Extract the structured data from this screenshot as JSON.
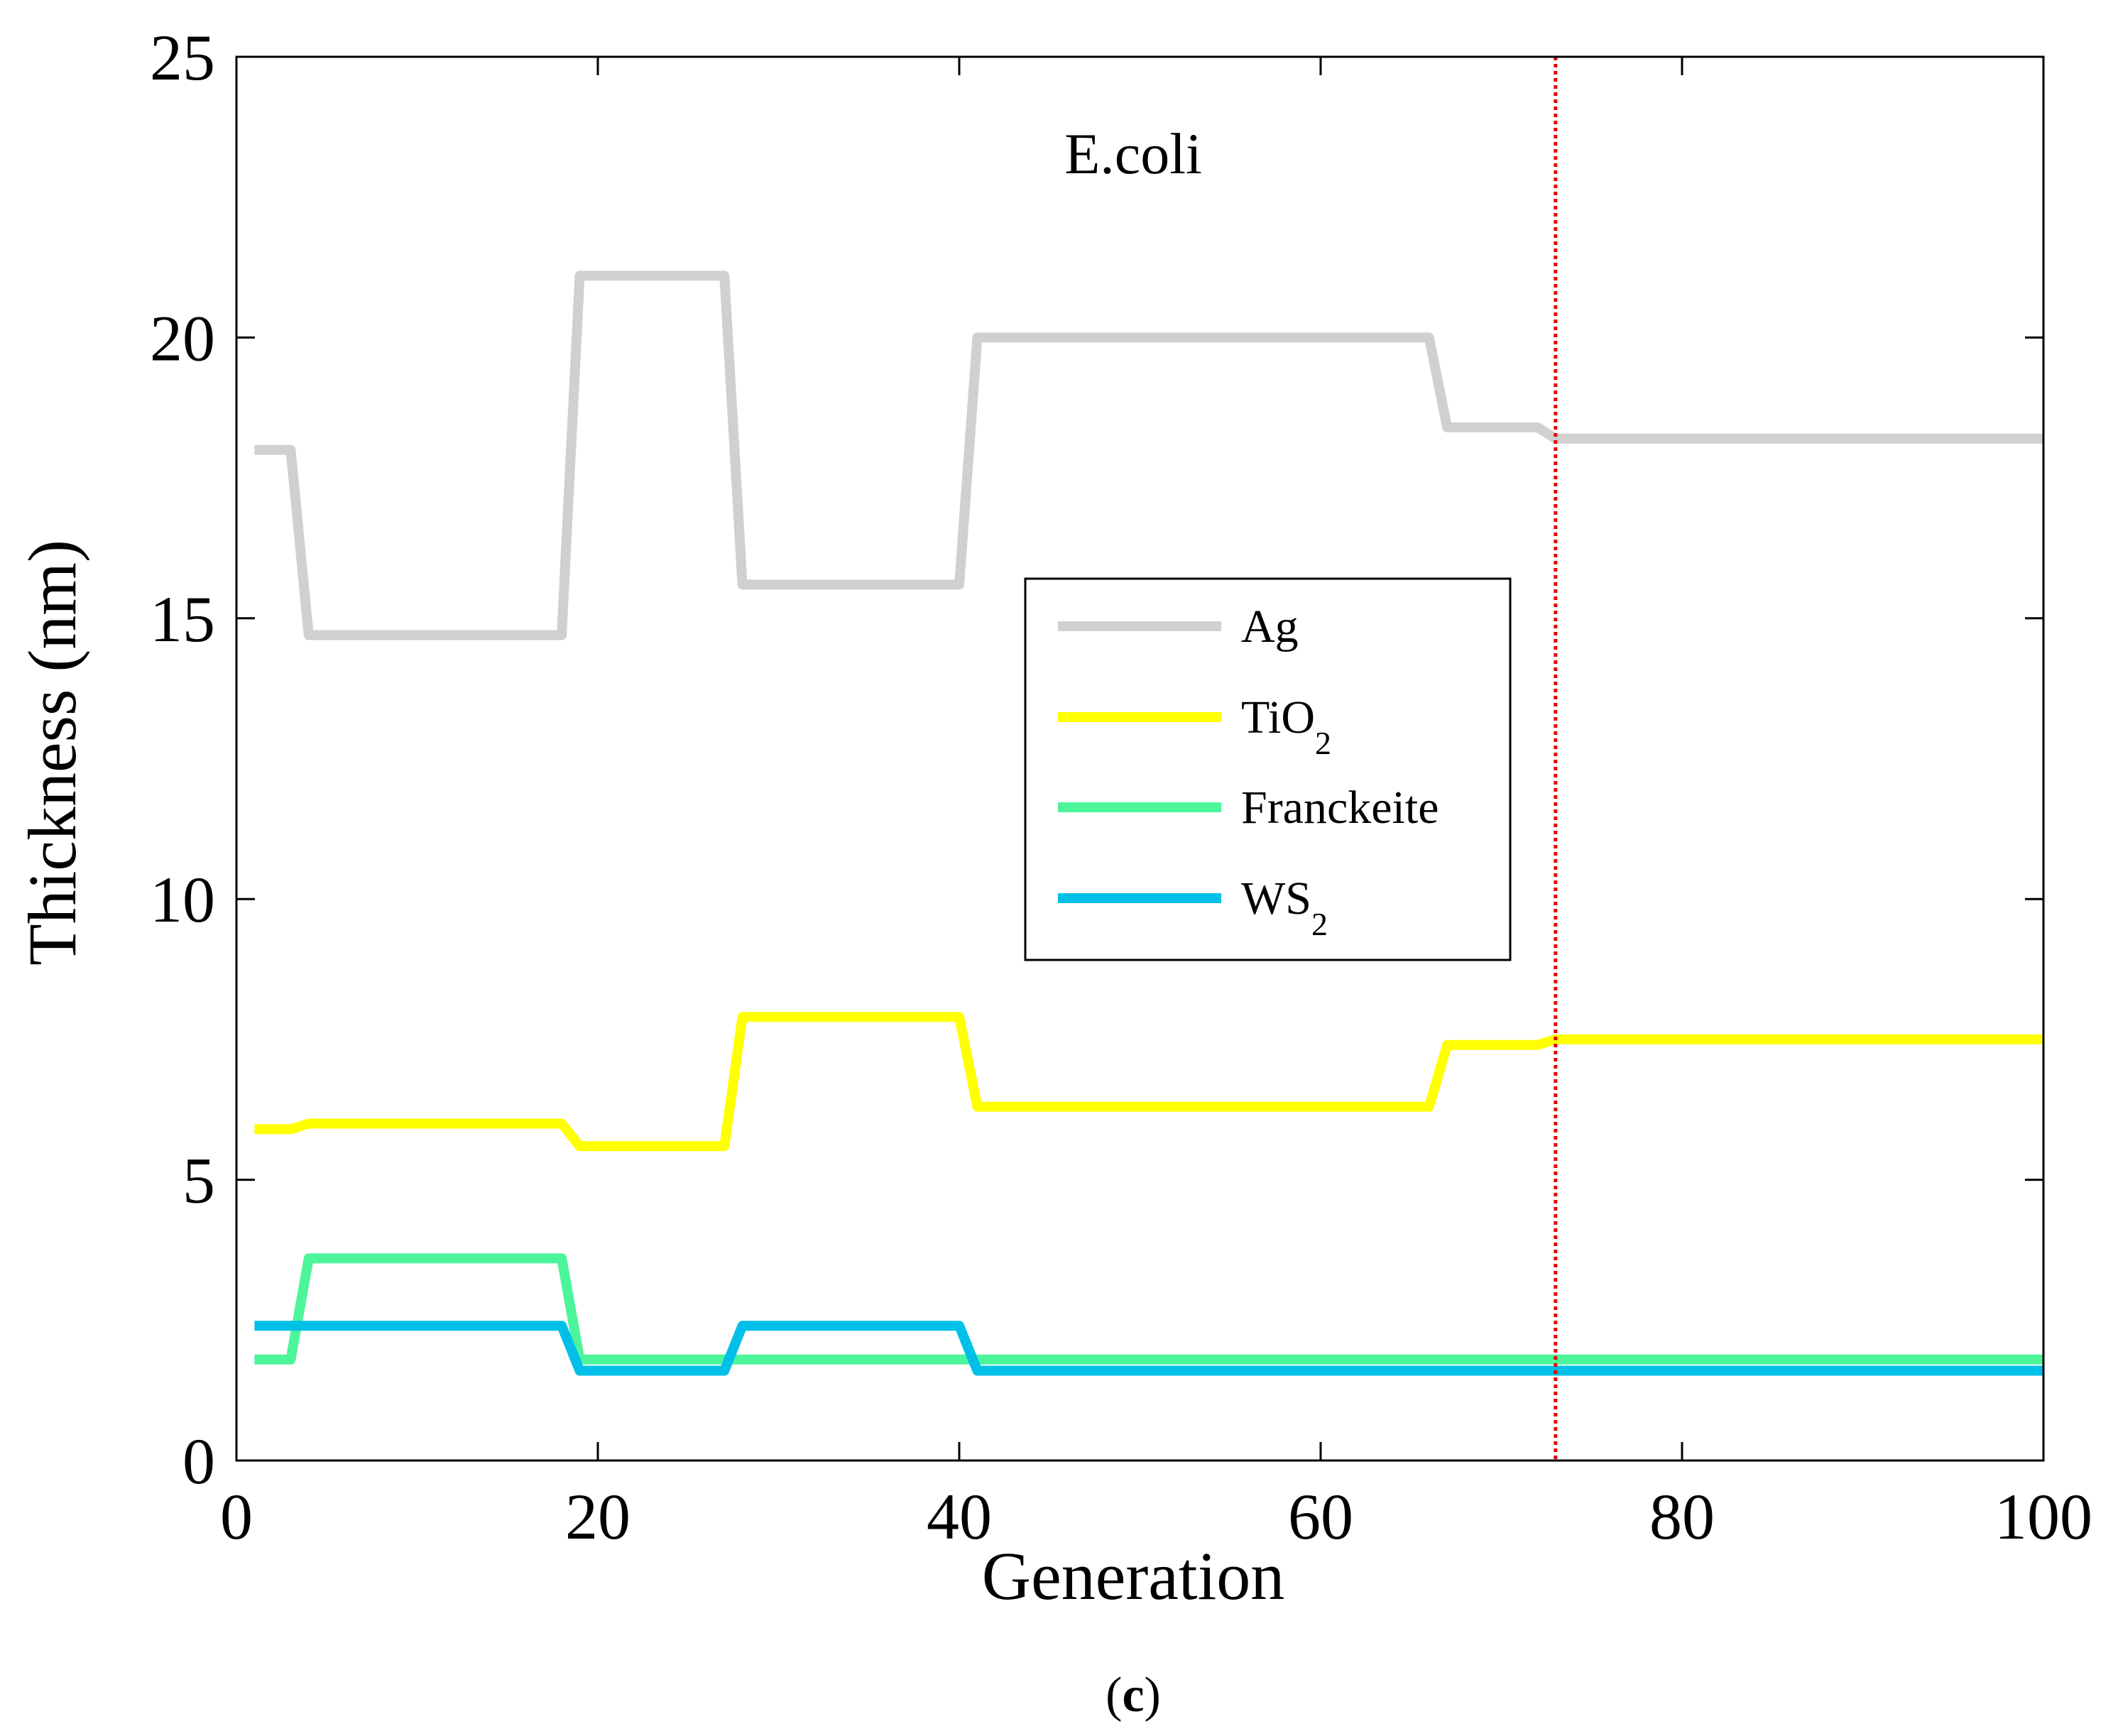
{
  "chart_data": {
    "type": "line",
    "title": "E.coli",
    "caption": {
      "open": "(",
      "letter": "c",
      "close": ")"
    },
    "xlabel": "Generation",
    "ylabel": "Thickness (nm)",
    "xlim": [
      0,
      100
    ],
    "ylim": [
      0,
      25
    ],
    "xticks": [
      0,
      20,
      40,
      60,
      80,
      100
    ],
    "yticks": [
      0,
      5,
      10,
      15,
      20,
      25
    ],
    "grid": false,
    "legend_position": "center-right",
    "marker_line": {
      "x": 73,
      "color": "#e00000",
      "style": "dotted"
    },
    "series": [
      {
        "name": "Ag",
        "label_main": "Ag",
        "label_sub": "",
        "color": "#d0d0d0",
        "x": [
          1,
          3,
          4,
          18,
          19,
          27,
          28,
          40,
          41,
          66,
          67,
          72,
          73,
          100
        ],
        "y": [
          18.0,
          18.0,
          14.7,
          14.7,
          21.1,
          21.1,
          15.6,
          15.6,
          20.0,
          20.0,
          18.4,
          18.4,
          18.2,
          18.2
        ]
      },
      {
        "name": "TiO2",
        "label_main": "TiO",
        "label_sub": "2",
        "color": "#ffff00",
        "x": [
          1,
          3,
          4,
          18,
          19,
          27,
          28,
          40,
          41,
          66,
          67,
          72,
          73,
          100
        ],
        "y": [
          5.9,
          5.9,
          6.0,
          6.0,
          5.6,
          5.6,
          7.9,
          7.9,
          6.3,
          6.3,
          7.4,
          7.4,
          7.5,
          7.5
        ]
      },
      {
        "name": "Franckeite",
        "label_main": "Franckeite",
        "label_sub": "",
        "color": "#4cf59a",
        "x": [
          1,
          3,
          4,
          18,
          19,
          100
        ],
        "y": [
          1.8,
          1.8,
          3.6,
          3.6,
          1.8,
          1.8
        ]
      },
      {
        "name": "WS2",
        "label_main": "WS",
        "label_sub": "2",
        "color": "#00c0e8",
        "x": [
          1,
          18,
          19,
          27,
          28,
          40,
          41,
          100
        ],
        "y": [
          2.4,
          2.4,
          1.6,
          1.6,
          2.4,
          2.4,
          1.6,
          1.6
        ]
      }
    ]
  }
}
